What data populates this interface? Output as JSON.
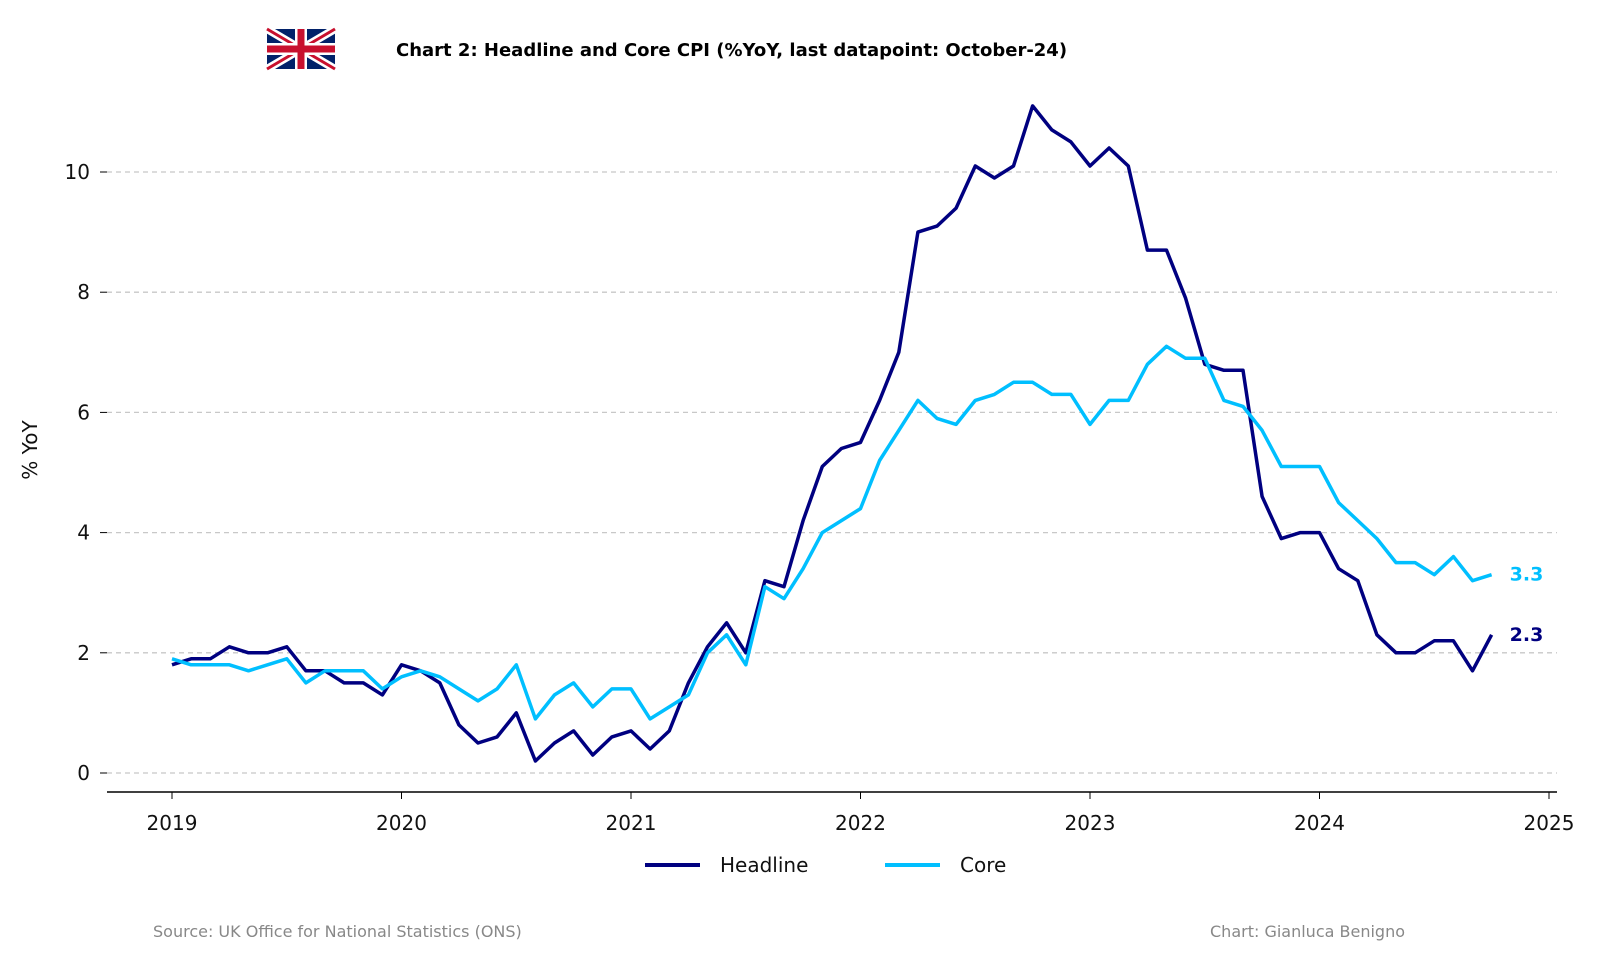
{
  "chart_data": {
    "type": "line",
    "title": "Chart 2: Headline and Core CPI (%YoY, last datapoint: October-24)",
    "xlabel": "",
    "ylabel": "% YoY",
    "x_start": "2019-01",
    "x_frequency": "monthly",
    "x_ticks": [
      "2019",
      "2020",
      "2021",
      "2022",
      "2023",
      "2024",
      "2025"
    ],
    "y_ticks": [
      "0",
      "2",
      "4",
      "6",
      "8",
      "10"
    ],
    "ylim": [
      -0.3,
      11.3
    ],
    "grid": "horizontal dashed",
    "legend_position": "bottom-center",
    "series": [
      {
        "name": "Headline",
        "color": "#000080",
        "end_label": "2.3",
        "values": [
          1.8,
          1.9,
          1.9,
          2.1,
          2.0,
          2.0,
          2.1,
          1.7,
          1.7,
          1.5,
          1.5,
          1.3,
          1.8,
          1.7,
          1.5,
          0.8,
          0.5,
          0.6,
          1.0,
          0.2,
          0.5,
          0.7,
          0.3,
          0.6,
          0.7,
          0.4,
          0.7,
          1.5,
          2.1,
          2.5,
          2.0,
          3.2,
          3.1,
          4.2,
          5.1,
          5.4,
          5.5,
          6.2,
          7.0,
          9.0,
          9.1,
          9.4,
          10.1,
          9.9,
          10.1,
          11.1,
          10.7,
          10.5,
          10.1,
          10.4,
          10.1,
          8.7,
          8.7,
          7.9,
          6.8,
          6.7,
          6.7,
          4.6,
          3.9,
          4.0,
          4.0,
          3.4,
          3.2,
          2.3,
          2.0,
          2.0,
          2.2,
          2.2,
          1.7,
          2.3
        ]
      },
      {
        "name": "Core",
        "color": "#00BFFF",
        "end_label": "3.3",
        "values": [
          1.9,
          1.8,
          1.8,
          1.8,
          1.7,
          1.8,
          1.9,
          1.5,
          1.7,
          1.7,
          1.7,
          1.4,
          1.6,
          1.7,
          1.6,
          1.4,
          1.2,
          1.4,
          1.8,
          0.9,
          1.3,
          1.5,
          1.1,
          1.4,
          1.4,
          0.9,
          1.1,
          1.3,
          2.0,
          2.3,
          1.8,
          3.1,
          2.9,
          3.4,
          4.0,
          4.2,
          4.4,
          5.2,
          5.7,
          6.2,
          5.9,
          5.8,
          6.2,
          6.3,
          6.5,
          6.5,
          6.3,
          6.3,
          5.8,
          6.2,
          6.2,
          6.8,
          7.1,
          6.9,
          6.9,
          6.2,
          6.1,
          5.7,
          5.1,
          5.1,
          5.1,
          4.5,
          4.2,
          3.9,
          3.5,
          3.5,
          3.3,
          3.6,
          3.2,
          3.3
        ]
      }
    ]
  },
  "footer": {
    "source": "Source: UK Office for National Statistics (ONS)",
    "credit": "Chart: Gianluca Benigno"
  },
  "flag_icon": "uk-flag"
}
